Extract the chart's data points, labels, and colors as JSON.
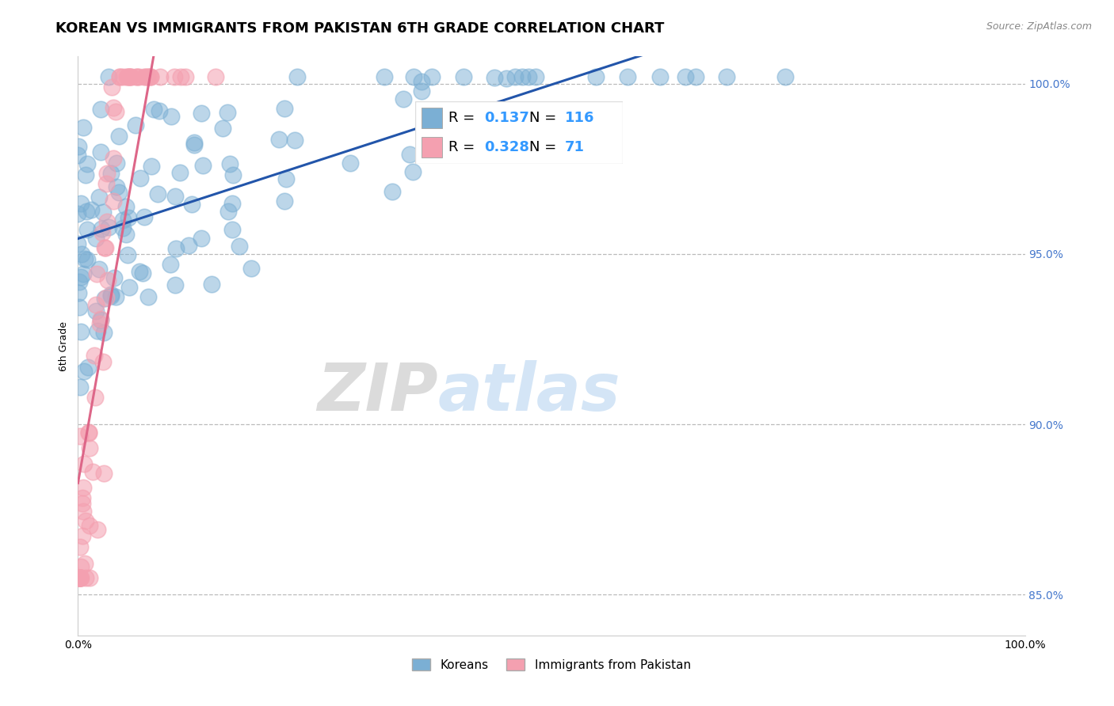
{
  "title": "KOREAN VS IMMIGRANTS FROM PAKISTAN 6TH GRADE CORRELATION CHART",
  "source": "Source: ZipAtlas.com",
  "ylabel": "6th Grade",
  "xlim": [
    0.0,
    1.0
  ],
  "ylim": [
    0.838,
    1.008
  ],
  "yticks": [
    0.85,
    0.9,
    0.95,
    1.0
  ],
  "ytick_labels": [
    "85.0%",
    "90.0%",
    "95.0%",
    "100.0%"
  ],
  "xticks": [
    0.0,
    0.1,
    0.2,
    0.3,
    0.4,
    0.5,
    0.6,
    0.7,
    0.8,
    0.9,
    1.0
  ],
  "xtick_labels": [
    "0.0%",
    "",
    "",
    "",
    "",
    "",
    "",
    "",
    "",
    "",
    "100.0%"
  ],
  "blue_R": 0.137,
  "blue_N": 116,
  "pink_R": 0.328,
  "pink_N": 71,
  "blue_color": "#7bafd4",
  "pink_color": "#f4a0b0",
  "trend_blue_color": "#2255aa",
  "trend_pink_color": "#dd6688",
  "watermark_zip": "ZIP",
  "watermark_atlas": "atlas",
  "legend_label_blue": "Koreans",
  "legend_label_pink": "Immigrants from Pakistan",
  "title_fontsize": 13,
  "axis_label_fontsize": 9,
  "tick_fontsize": 10,
  "legend_fontsize": 13,
  "source_fontsize": 9
}
